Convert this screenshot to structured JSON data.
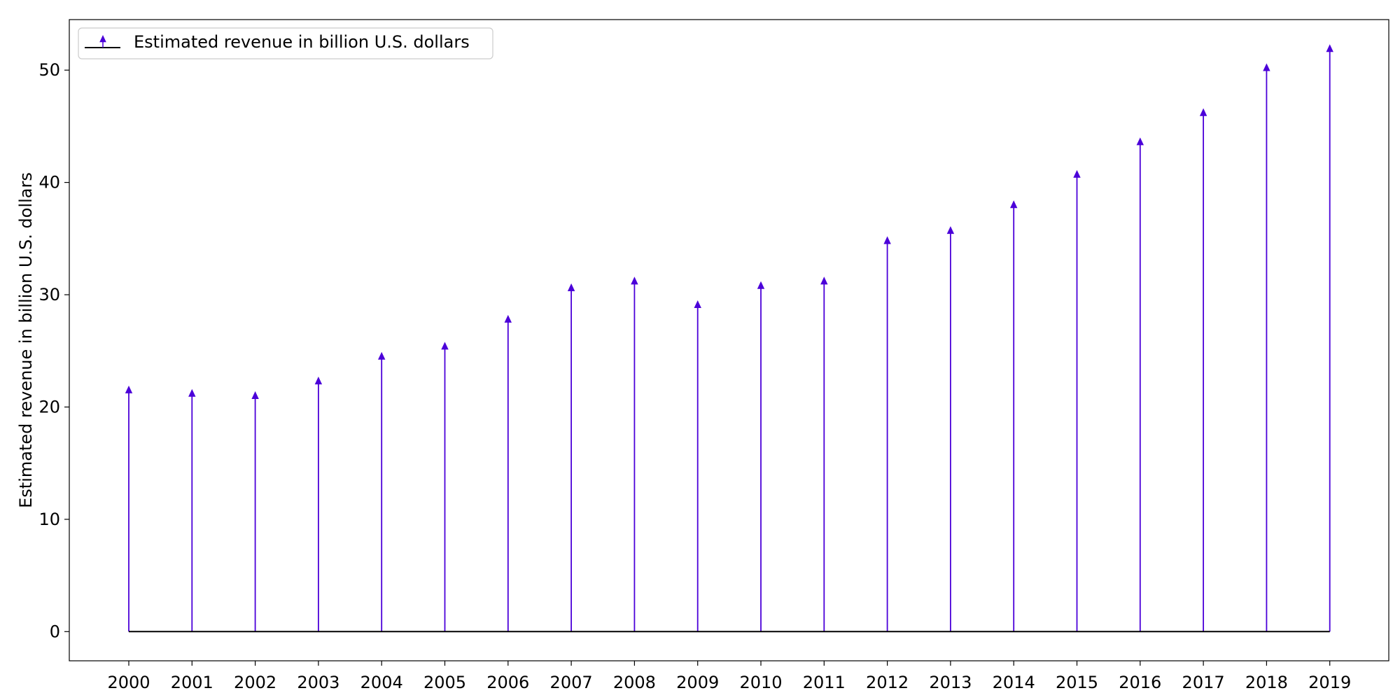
{
  "chart_data": {
    "type": "stem",
    "title": "",
    "xlabel": "",
    "ylabel": "Estimated revenue in billion U.S. dollars",
    "categories": [
      "2000",
      "2001",
      "2002",
      "2003",
      "2004",
      "2005",
      "2006",
      "2007",
      "2008",
      "2009",
      "2010",
      "2011",
      "2012",
      "2013",
      "2014",
      "2015",
      "2016",
      "2017",
      "2018",
      "2019"
    ],
    "series": [
      {
        "name": "Estimated revenue in billion U.S. dollars",
        "values": [
          21.5,
          21.2,
          21.0,
          22.3,
          24.5,
          25.4,
          27.8,
          30.6,
          31.2,
          29.1,
          30.8,
          31.2,
          34.8,
          35.7,
          38.0,
          40.7,
          43.6,
          46.2,
          50.2,
          51.9
        ],
        "color": "#4b00d9",
        "marker": "triangle-up"
      }
    ],
    "ylim": [
      -2.6,
      54.5
    ],
    "yticks": [
      0,
      10,
      20,
      30,
      40,
      50
    ],
    "baseline": 0,
    "baseline_color": "#000000",
    "grid": false,
    "legend": "upper-left"
  }
}
